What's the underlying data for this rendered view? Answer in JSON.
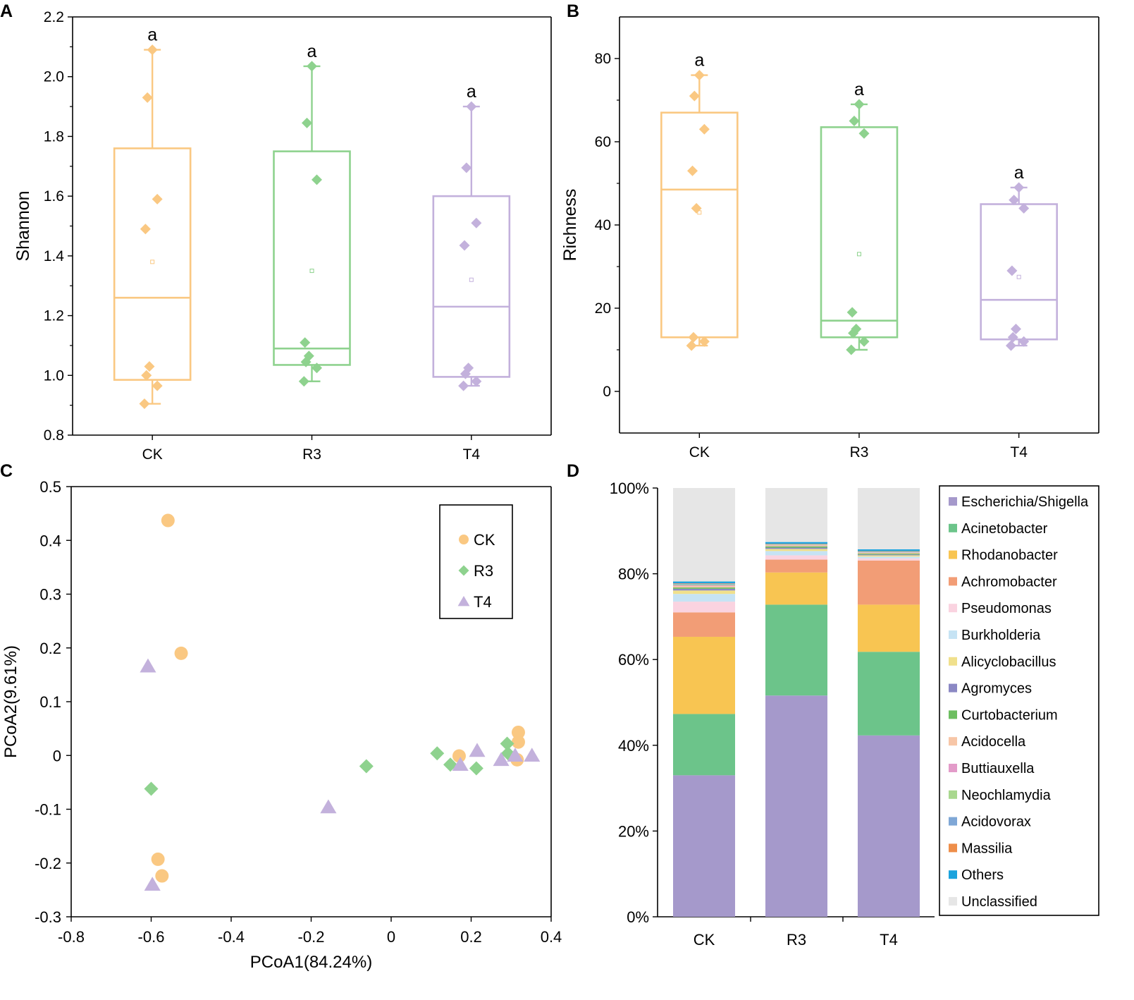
{
  "colors": {
    "CK": "#FAC882",
    "R3": "#8ED28E",
    "T4": "#C3B1DC"
  },
  "chart_data": [
    {
      "panel_label": "A",
      "type": "box",
      "xlabel": "",
      "ylabel": "Shannon",
      "categories": [
        "CK",
        "R3",
        "T4"
      ],
      "ylim": [
        0.8,
        2.2
      ],
      "yticks": [
        0.8,
        1.0,
        1.2,
        1.4,
        1.6,
        1.8,
        2.0,
        2.2
      ],
      "ytick_labels": [
        "0.8",
        "1.0",
        "1.2",
        "1.4",
        "1.6",
        "1.8",
        "2.0",
        "2.2"
      ],
      "series": [
        {
          "name": "CK",
          "whisker_low": 0.905,
          "q1": 0.985,
          "median": 1.26,
          "q3": 1.76,
          "whisker_high": 2.09,
          "mean": 1.38,
          "letter": "a",
          "points": [
            2.09,
            1.93,
            1.59,
            1.49,
            1.03,
            1.0,
            0.965,
            0.905
          ]
        },
        {
          "name": "R3",
          "whisker_low": 0.98,
          "q1": 1.035,
          "median": 1.09,
          "q3": 1.75,
          "whisker_high": 2.035,
          "mean": 1.35,
          "letter": "a",
          "points": [
            2.035,
            1.845,
            1.655,
            1.11,
            1.065,
            1.045,
            1.025,
            0.98
          ]
        },
        {
          "name": "T4",
          "whisker_low": 0.965,
          "q1": 0.995,
          "median": 1.23,
          "q3": 1.6,
          "whisker_high": 1.9,
          "mean": 1.32,
          "letter": "a",
          "points": [
            1.9,
            1.695,
            1.51,
            1.435,
            1.025,
            1.005,
            0.98,
            0.965
          ]
        }
      ]
    },
    {
      "panel_label": "B",
      "type": "box",
      "xlabel": "",
      "ylabel": "Richness",
      "categories": [
        "CK",
        "R3",
        "T4"
      ],
      "ylim": [
        -10,
        90
      ],
      "yticks": [
        0,
        20,
        40,
        60,
        80
      ],
      "ytick_labels": [
        "0",
        "20",
        "40",
        "60",
        "80"
      ],
      "series": [
        {
          "name": "CK",
          "whisker_low": 11,
          "q1": 13,
          "median": 48.5,
          "q3": 67,
          "whisker_high": 76,
          "mean": 43,
          "letter": "a",
          "points": [
            76,
            71,
            63,
            53,
            44,
            13,
            12,
            11
          ]
        },
        {
          "name": "R3",
          "whisker_low": 10,
          "q1": 13,
          "median": 17,
          "q3": 63.5,
          "whisker_high": 69,
          "mean": 33,
          "letter": "a",
          "points": [
            69,
            65,
            62,
            19,
            15,
            14,
            12,
            10
          ]
        },
        {
          "name": "T4",
          "whisker_low": 11,
          "q1": 12.5,
          "median": 22,
          "q3": 45,
          "whisker_high": 49,
          "mean": 27.5,
          "letter": "a",
          "points": [
            49,
            46,
            44,
            29,
            15,
            13,
            12,
            11
          ]
        }
      ]
    },
    {
      "panel_label": "C",
      "type": "scatter",
      "xlabel": "PCoA1(84.24%)",
      "ylabel": "PCoA2(9.61%)",
      "xlim": [
        -0.8,
        0.4
      ],
      "ylim": [
        -0.3,
        0.5
      ],
      "xticks": [
        -0.8,
        -0.6,
        -0.4,
        -0.2,
        0,
        0.2,
        0.4
      ],
      "xtick_labels": [
        "-0.8",
        "-0.6",
        "-0.4",
        "-0.2",
        "0",
        "0.2",
        "0.4"
      ],
      "yticks": [
        -0.3,
        -0.2,
        -0.1,
        0,
        0.1,
        0.2,
        0.3,
        0.4,
        0.5
      ],
      "ytick_labels": [
        "-0.3",
        "-0.2",
        "-0.1",
        "0",
        "0.1",
        "0.2",
        "0.3",
        "0.4",
        "0.5"
      ],
      "legend": [
        "CK",
        "R3",
        "T4"
      ],
      "legend_position": "top-right",
      "series": [
        {
          "name": "CK",
          "marker": "circle",
          "x": [
            -0.558,
            -0.525,
            -0.583,
            -0.573,
            0.17,
            0.318,
            0.318,
            0.315
          ],
          "y": [
            0.437,
            0.19,
            -0.193,
            -0.224,
            -0.001,
            0.043,
            0.025,
            -0.008
          ]
        },
        {
          "name": "R3",
          "marker": "diamond",
          "x": [
            -0.6,
            -0.062,
            0.115,
            0.148,
            0.213,
            0.29,
            0.292
          ],
          "y": [
            -0.062,
            -0.02,
            0.004,
            -0.017,
            -0.024,
            0.022,
            0.004
          ]
        },
        {
          "name": "T4",
          "marker": "triangle",
          "x": [
            -0.608,
            -0.597,
            -0.157,
            0.173,
            0.215,
            0.275,
            0.31,
            0.352
          ],
          "y": [
            0.166,
            -0.24,
            -0.096,
            -0.017,
            0.009,
            -0.008,
            0.0,
            0.0
          ]
        }
      ]
    },
    {
      "panel_label": "D",
      "type": "stacked_bar",
      "categories": [
        "CK",
        "R3",
        "T4"
      ],
      "ylim": [
        0,
        100
      ],
      "yticks": [
        0,
        20,
        40,
        60,
        80,
        100
      ],
      "ytick_labels": [
        "0%",
        "20%",
        "40%",
        "60%",
        "80%",
        "100%"
      ],
      "legend_position": "right",
      "series": [
        {
          "name": "Escherichia/Shigella",
          "color": "#A599CB",
          "values": [
            33.0,
            51.6,
            42.3
          ]
        },
        {
          "name": "Acinetobacter",
          "color": "#6CC48A",
          "values": [
            14.3,
            21.2,
            19.5
          ]
        },
        {
          "name": "Rhodanobacter",
          "color": "#F8C552",
          "values": [
            18.0,
            7.5,
            11.0
          ]
        },
        {
          "name": "Achromobacter",
          "color": "#F29D76",
          "values": [
            5.7,
            3.0,
            10.3
          ]
        },
        {
          "name": "Pseudomonas",
          "color": "#FAD3E0",
          "values": [
            2.5,
            1.0,
            0.5
          ]
        },
        {
          "name": "Burkholderia",
          "color": "#C6E3F4",
          "values": [
            1.8,
            1.0,
            0.4
          ]
        },
        {
          "name": "Alicyclobacillus",
          "color": "#F0E08C",
          "values": [
            0.8,
            0.5,
            0.3
          ]
        },
        {
          "name": "Agromyces",
          "color": "#8B88C4",
          "values": [
            0.4,
            0.3,
            0.2
          ]
        },
        {
          "name": "Curtobacterium",
          "color": "#6DBE60",
          "values": [
            0.3,
            0.3,
            0.2
          ]
        },
        {
          "name": "Acidocella",
          "color": "#F7C6A7",
          "values": [
            0.3,
            0.2,
            0.2
          ]
        },
        {
          "name": "Buttiauxella",
          "color": "#E39BC9",
          "values": [
            0.2,
            0.1,
            0.1
          ]
        },
        {
          "name": "Neochlamydia",
          "color": "#A9D88F",
          "values": [
            0.2,
            0.1,
            0.1
          ]
        },
        {
          "name": "Acidovorax",
          "color": "#7FA7D6",
          "values": [
            0.2,
            0.1,
            0.1
          ]
        },
        {
          "name": "Massilia",
          "color": "#EE8E4A",
          "values": [
            0.1,
            0.1,
            0.1
          ]
        },
        {
          "name": "Others",
          "color": "#1BA3DD",
          "values": [
            0.4,
            0.4,
            0.4
          ]
        },
        {
          "name": "Unclassified",
          "color": "#E6E6E6",
          "values": [
            21.8,
            12.6,
            14.3
          ]
        }
      ]
    }
  ]
}
